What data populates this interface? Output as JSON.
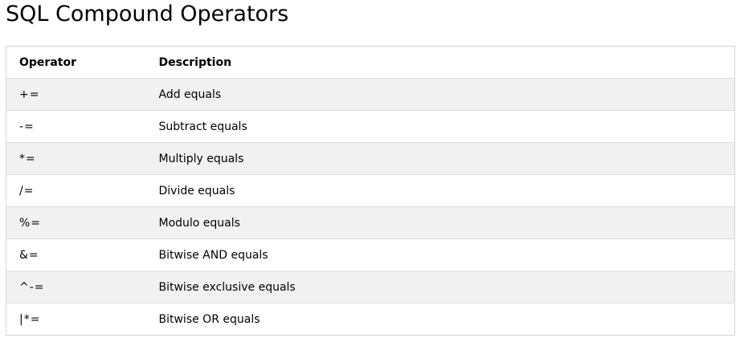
{
  "page": {
    "title": "SQL Compound Operators"
  },
  "table": {
    "headers": {
      "operator": "Operator",
      "description": "Description"
    },
    "rows": [
      {
        "operator": "+=",
        "description": "Add equals"
      },
      {
        "operator": "-=",
        "description": "Subtract equals"
      },
      {
        "operator": "*=",
        "description": "Multiply equals"
      },
      {
        "operator": "/=",
        "description": "Divide equals"
      },
      {
        "operator": "%=",
        "description": "Modulo equals"
      },
      {
        "operator": "&=",
        "description": "Bitwise AND equals"
      },
      {
        "operator": "^-=",
        "description": "Bitwise exclusive equals"
      },
      {
        "operator": "|*=",
        "description": "Bitwise OR equals"
      }
    ]
  }
}
